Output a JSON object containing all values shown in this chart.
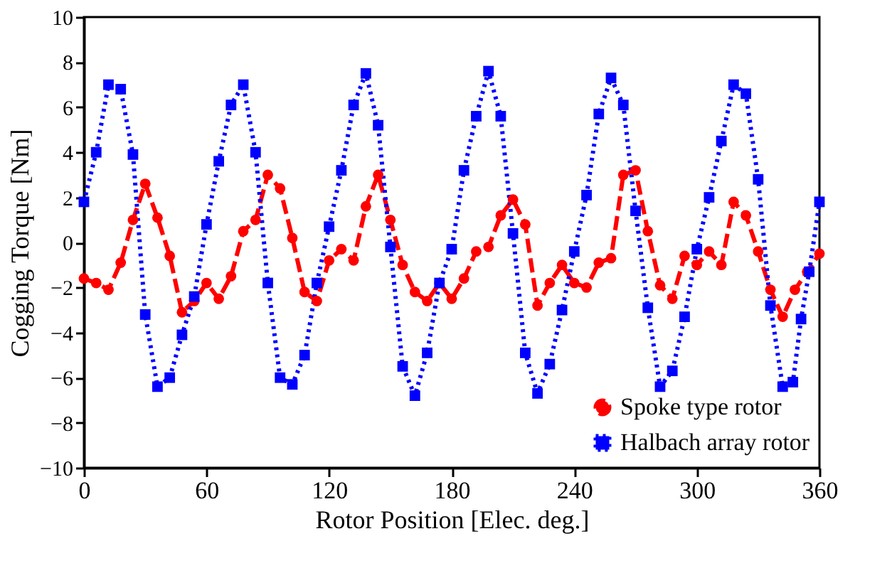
{
  "chart_data": {
    "type": "line",
    "xlabel": "Rotor Position [Elec. deg.]",
    "ylabel": "Cogging Torque [Nm]",
    "xlim": [
      0,
      360
    ],
    "xticks": [
      0,
      60,
      120,
      180,
      240,
      300,
      360
    ],
    "ylim": [
      -10,
      10
    ],
    "yticks": [
      -10,
      -8,
      -6,
      -4,
      -2,
      0,
      2,
      4,
      6,
      8,
      10
    ],
    "grid": false,
    "legend": "bottom right",
    "series": [
      {
        "name": "Spoke type rotor",
        "color": "#ff0000",
        "marker": "circle",
        "line_style": "dashed",
        "x": [
          0,
          6,
          12,
          18,
          24,
          30,
          36,
          42,
          48,
          54,
          60,
          66,
          72,
          78,
          84,
          90,
          96,
          102,
          108,
          114,
          120,
          126,
          132,
          138,
          144,
          150,
          156,
          162,
          168,
          174,
          180,
          186,
          192,
          198,
          204,
          210,
          216,
          222,
          228,
          234,
          240,
          246,
          252,
          258,
          264,
          270,
          276,
          282,
          288,
          294,
          300,
          306,
          312,
          318,
          324,
          330,
          336,
          342,
          348,
          354,
          360
        ],
        "values": [
          -1.6,
          -1.8,
          -2.1,
          -0.9,
          1.0,
          2.6,
          1.1,
          -0.6,
          -3.1,
          -2.6,
          -1.8,
          -2.5,
          -1.5,
          0.5,
          1.0,
          3.0,
          2.4,
          0.2,
          -2.2,
          -2.6,
          -0.8,
          -0.3,
          -0.8,
          1.6,
          3.0,
          1.0,
          -1.0,
          -2.2,
          -2.6,
          -1.8,
          -2.5,
          -1.6,
          -0.4,
          -0.2,
          1.2,
          1.9,
          0.8,
          -2.8,
          -1.8,
          -1.0,
          -1.8,
          -2.0,
          -0.9,
          -0.7,
          3.0,
          3.2,
          0.5,
          -1.9,
          -2.5,
          -0.6,
          -1.0,
          -0.4,
          -1.0,
          1.8,
          1.2,
          -0.4,
          -2.1,
          -3.3,
          -2.1,
          -1.3,
          -0.5
        ]
      },
      {
        "name": "Halbach array rotor",
        "color": "#0000ff",
        "marker": "square",
        "line_style": "dotted",
        "x": [
          0,
          6,
          12,
          18,
          24,
          30,
          36,
          42,
          48,
          54,
          60,
          66,
          72,
          78,
          84,
          90,
          96,
          102,
          108,
          114,
          120,
          126,
          132,
          138,
          144,
          150,
          156,
          162,
          168,
          174,
          180,
          186,
          192,
          198,
          204,
          210,
          216,
          222,
          228,
          234,
          240,
          246,
          252,
          258,
          264,
          270,
          276,
          282,
          288,
          294,
          300,
          306,
          312,
          318,
          324,
          330,
          336,
          342,
          347,
          351,
          355,
          360
        ],
        "values": [
          1.8,
          4.0,
          7.0,
          6.8,
          3.9,
          -3.2,
          -6.4,
          -6.0,
          -4.1,
          -2.4,
          0.8,
          3.6,
          6.1,
          7.0,
          4.0,
          -1.8,
          -6.0,
          -6.3,
          -5.0,
          -1.8,
          0.7,
          3.2,
          6.1,
          7.5,
          5.2,
          -0.2,
          -5.5,
          -6.8,
          -4.9,
          -1.8,
          -0.3,
          3.2,
          5.6,
          7.6,
          5.6,
          0.4,
          -4.9,
          -6.7,
          -5.4,
          -3.0,
          -0.4,
          2.1,
          5.7,
          7.3,
          6.1,
          1.4,
          -2.9,
          -6.4,
          -5.7,
          -3.3,
          -0.3,
          2.0,
          4.5,
          7.0,
          6.6,
          2.8,
          -2.8,
          -6.4,
          -6.2,
          -3.4,
          -1.3,
          1.8
        ]
      }
    ]
  }
}
